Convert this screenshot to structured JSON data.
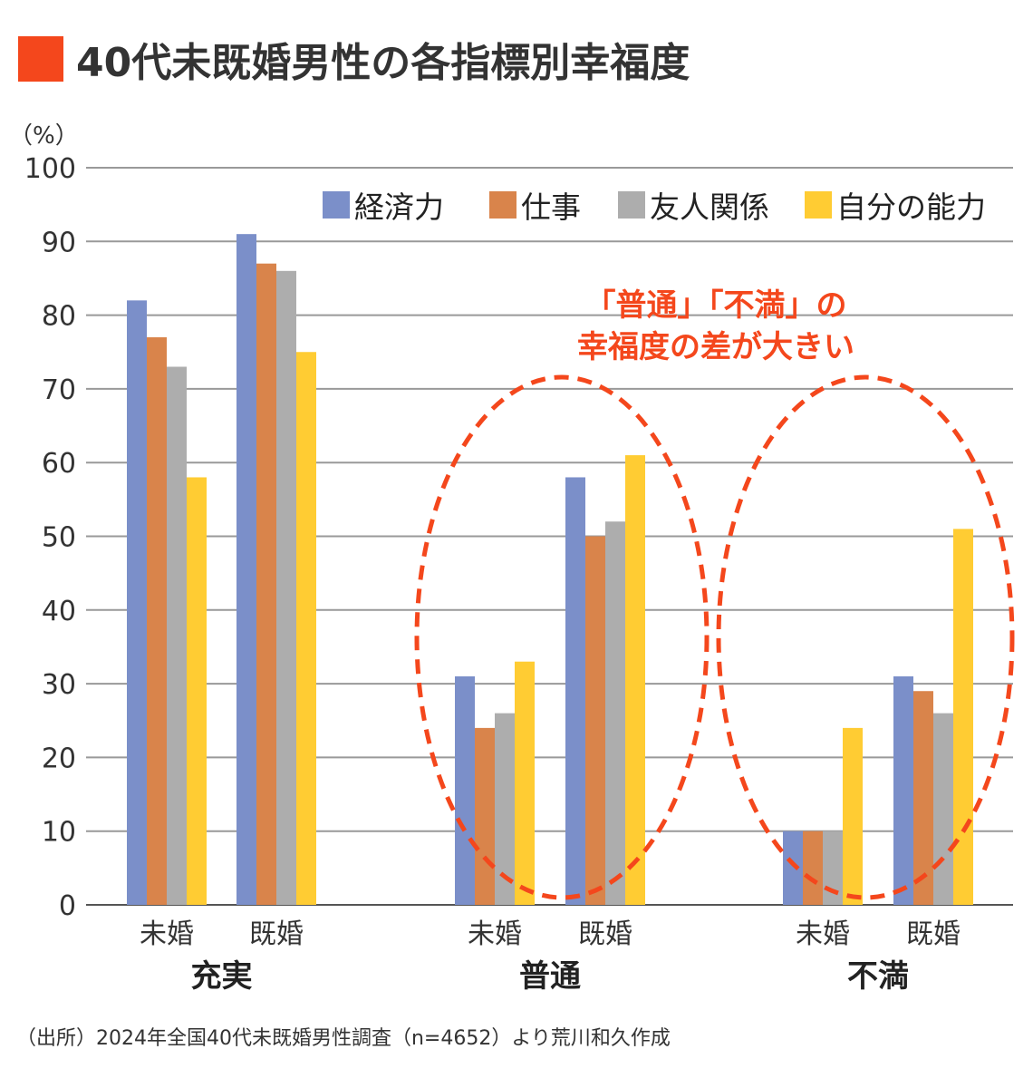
{
  "chart_data": {
    "type": "bar",
    "title": "40代未既婚男性の各指標別幸福度",
    "ylabel": "（%）",
    "ylim": [
      0,
      100
    ],
    "yticks": [
      0,
      10,
      20,
      30,
      40,
      50,
      60,
      70,
      80,
      90,
      100
    ],
    "grid": true,
    "legend_position": "top-right",
    "groups": [
      {
        "label": "充実",
        "subcategories": [
          "未婚",
          "既婚"
        ]
      },
      {
        "label": "普通",
        "subcategories": [
          "未婚",
          "既婚"
        ]
      },
      {
        "label": "不満",
        "subcategories": [
          "未婚",
          "既婚"
        ]
      }
    ],
    "series": [
      {
        "name": "経済力",
        "color": "#7b8fc9",
        "values": [
          82,
          91,
          31,
          58,
          10,
          31
        ]
      },
      {
        "name": "仕事",
        "color": "#d9844b",
        "values": [
          77,
          87,
          24,
          50,
          10,
          29
        ]
      },
      {
        "name": "友人関係",
        "color": "#adadad",
        "values": [
          73,
          86,
          26,
          52,
          10,
          26
        ]
      },
      {
        "name": "自分の能力",
        "color": "#ffcc33",
        "values": [
          58,
          75,
          33,
          61,
          24,
          51
        ]
      }
    ],
    "annotation": [
      "「普通」「不満」の",
      "幸福度の差が大きい"
    ],
    "source": "（出所）2024年全国40代未既婚男性調査（n=4652）より荒川和久作成"
  },
  "colors": {
    "accent": "#f4471c",
    "grid": "#999999"
  }
}
